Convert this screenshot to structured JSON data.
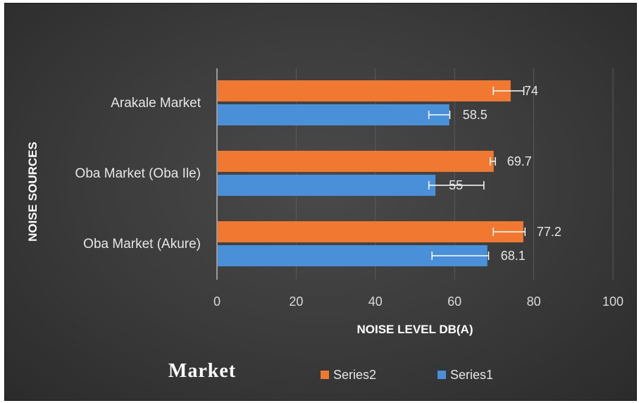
{
  "chart_data": {
    "type": "bar",
    "orientation": "horizontal",
    "title": "Market",
    "xlabel": "NOISE LEVEL DB(A)",
    "ylabel": "NOISE SOURCES",
    "categories": [
      "Oba Market (Akure)",
      "Oba Market (Oba Ile)",
      "Arakale Market"
    ],
    "series": [
      {
        "name": "Series1",
        "values": [
          68.1,
          55,
          58.5
        ],
        "error_low": [
          13.8,
          1.5,
          5.0
        ],
        "error_high": [
          0.5,
          12.4,
          0.3
        ],
        "color": "#4a90d9"
      },
      {
        "name": "Series2",
        "values": [
          77.2,
          69.7,
          74
        ],
        "error_low": [
          7.4,
          0.7,
          4.2
        ],
        "error_high": [
          0.6,
          0.6,
          3.5
        ],
        "color": "#f07830"
      }
    ],
    "data_labels": {
      "Series1": [
        "68.1",
        "55",
        "58.5"
      ],
      "Series2": [
        "77.2",
        "69.7",
        "74"
      ]
    },
    "xlim": [
      0,
      100
    ],
    "xticks": [
      0,
      20,
      40,
      60,
      80,
      100
    ],
    "grid": true,
    "legend_position": "bottom"
  }
}
